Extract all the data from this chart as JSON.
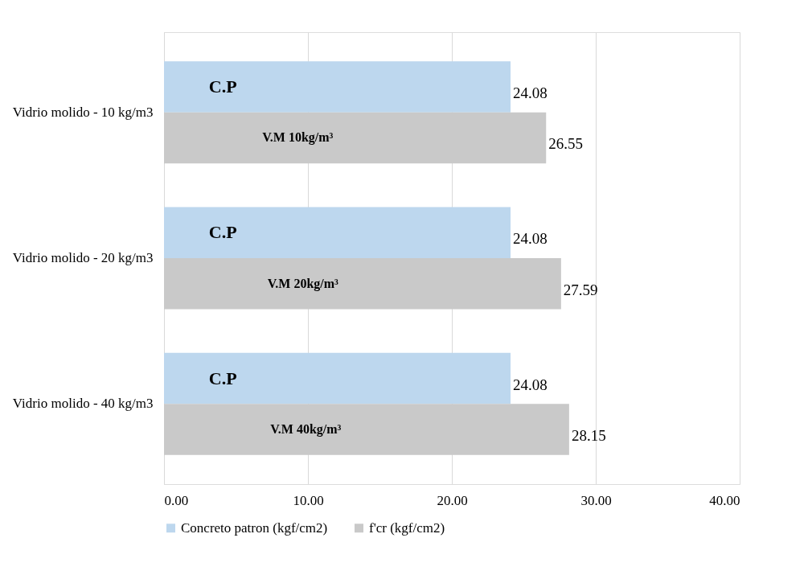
{
  "chart_data": {
    "type": "bar",
    "orientation": "horizontal",
    "categories": [
      "Vidrio molido - 10 kg/m3",
      "Vidrio molido - 20 kg/m3",
      "Vidrio molido - 40 kg/m3"
    ],
    "series": [
      {
        "name": "Concreto patron (kgf/cm2)",
        "color": "#bdd7ee",
        "values": [
          24.08,
          24.08,
          24.08
        ]
      },
      {
        "name": "f'cr (kgf/cm2)",
        "color": "#c9c9c9",
        "values": [
          26.55,
          27.59,
          28.15
        ]
      }
    ],
    "xlim": [
      0,
      40
    ],
    "xticks": [
      {
        "value": 0,
        "label": "0.00"
      },
      {
        "value": 10,
        "label": "10.00"
      },
      {
        "value": 20,
        "label": "20.00"
      },
      {
        "value": 30,
        "label": "30.00"
      },
      {
        "value": 40,
        "label": "40.00"
      }
    ],
    "data_labels": true,
    "grid": "x",
    "legend": "bottom",
    "annotations": [
      "C.P",
      "V.M 10kg/m³",
      "C.P",
      "V.M 20kg/m³",
      "C.P",
      "V.M 40kg/m³"
    ]
  }
}
